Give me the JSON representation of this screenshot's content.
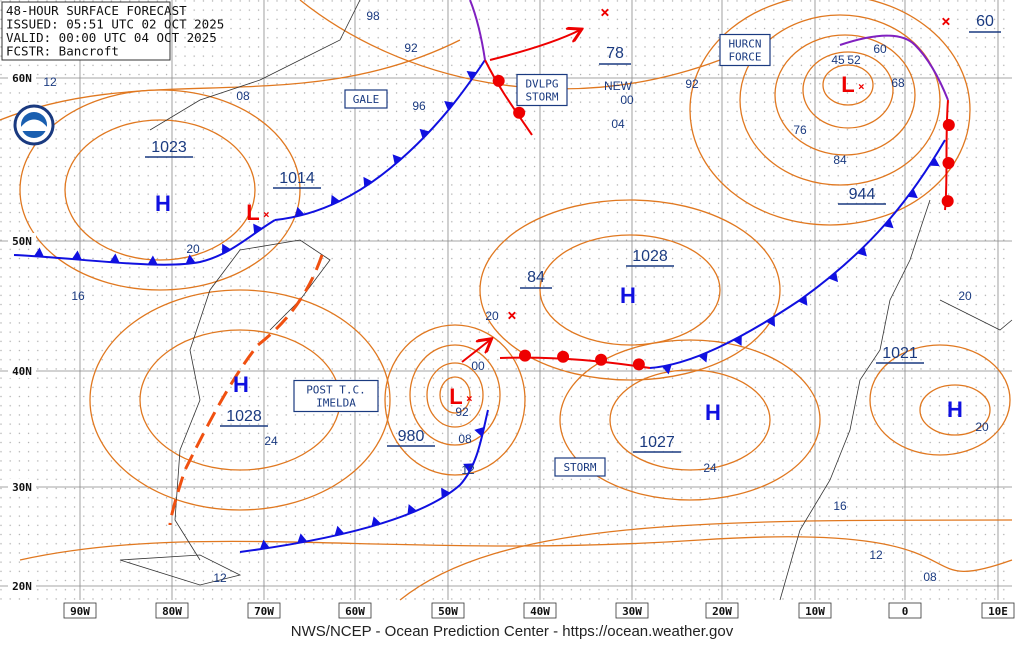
{
  "header": {
    "lines": [
      "48-HOUR SURFACE FORECAST",
      "ISSUED: 05:51 UTC 02 OCT 2025",
      "VALID: 00:00 UTC 04 OCT 2025",
      "FCSTR: Bancroft"
    ]
  },
  "lat_labels": [
    "60N",
    "50N",
    "40N",
    "30N",
    "20N"
  ],
  "lon_labels": [
    "90W",
    "80W",
    "70W",
    "60W",
    "50W",
    "40W",
    "30W",
    "20W",
    "10W",
    "0",
    "10E"
  ],
  "centers": [
    {
      "symbol": "H",
      "value": "1023"
    },
    {
      "symbol": "L",
      "value": "1014"
    },
    {
      "symbol": "H",
      "value": "1028"
    },
    {
      "symbol": "H",
      "value": "1028"
    },
    {
      "symbol": "H",
      "value": "1027"
    },
    {
      "symbol": "H",
      "value": "1021"
    },
    {
      "symbol": "L",
      "value": "944"
    },
    {
      "symbol": "L",
      "value": "980"
    }
  ],
  "forecast_values": [
    "78",
    "84",
    "60"
  ],
  "warning_boxes": [
    [
      "GALE"
    ],
    [
      "DVLPG",
      "STORM"
    ],
    [
      "HURCN",
      "FORCE"
    ],
    [
      "POST T.C.",
      "IMELDA"
    ],
    [
      "STORM"
    ]
  ],
  "isobar_labels": [
    "98",
    "92",
    "12",
    "08",
    "96",
    "NEW",
    "00",
    "92",
    "04",
    "60",
    "68",
    "76",
    "84",
    "20",
    "16",
    "20",
    "00",
    "92",
    "08",
    "12",
    "24",
    "24",
    "20",
    "20",
    "16",
    "12",
    "08",
    "12",
    "45",
    "52"
  ],
  "footer": "NWS/NCEP - Ocean Prediction Center - https://ocean.weather.gov"
}
